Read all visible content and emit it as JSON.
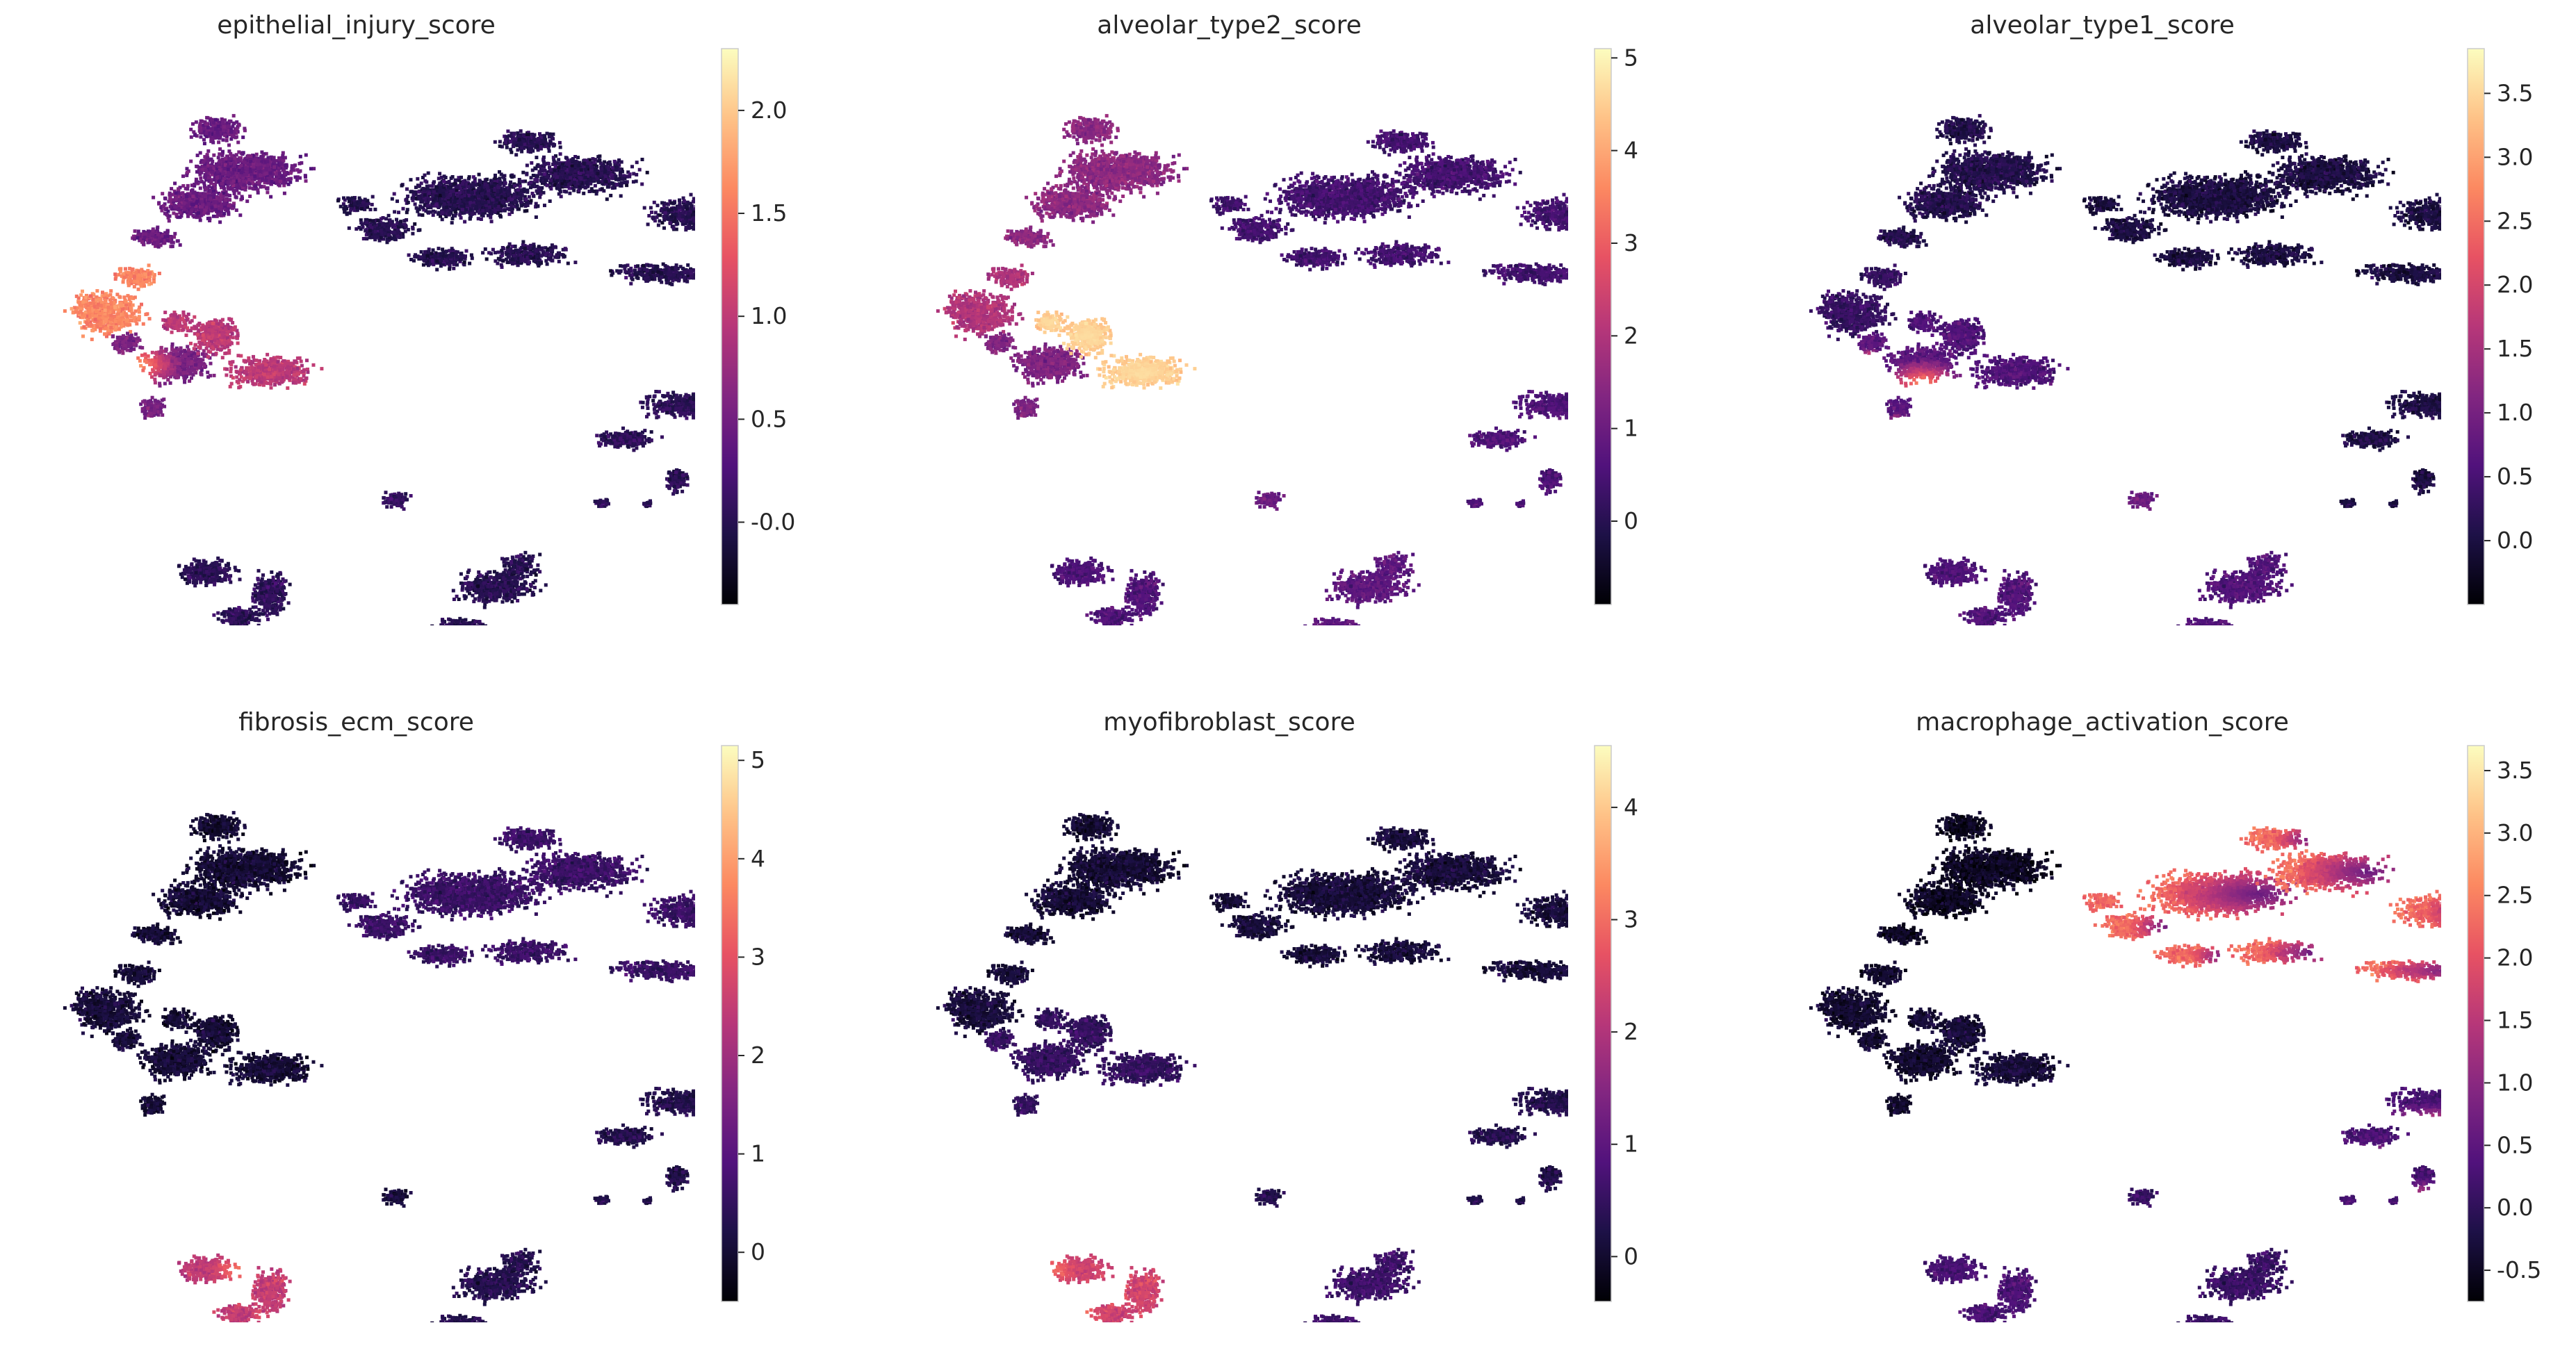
{
  "figure": {
    "type": "umap-feature-grid",
    "layout": "2 rows x 3 columns",
    "colormap": "magma"
  },
  "colormap_stops": [
    "#000004",
    "#1d1147",
    "#51127c",
    "#822681",
    "#b73779",
    "#e75263",
    "#fc8961",
    "#fec287",
    "#fcfdbf"
  ],
  "chart_data": [
    {
      "type": "scatter",
      "title": "epithelial_injury_score",
      "colorbar": {
        "ticks": [
          "-0.0",
          "0.5",
          "1.0",
          "1.5",
          "2.0"
        ],
        "tick_values": [
          0.0,
          0.5,
          1.0,
          1.5,
          2.0
        ],
        "range": [
          -0.4,
          2.3
        ]
      },
      "cluster_levels": {
        "epi_upper": 0.45,
        "epi_hotspot": 1.6,
        "epi_lower": 0.55,
        "epi_mid": 1.0,
        "mac_main": 0.0,
        "mac_tail": 0.05,
        "fib_right": 0.05,
        "small_blob": 0.1,
        "t_left": 0.05,
        "t_right": 0.0
      },
      "hotspots": [
        {
          "cluster": "epi_lower",
          "level": 1.8,
          "near": "left"
        }
      ]
    },
    {
      "type": "scatter",
      "title": "alveolar_type2_score",
      "colorbar": {
        "ticks": [
          "0",
          "1",
          "2",
          "3",
          "4",
          "5"
        ],
        "tick_values": [
          0,
          1,
          2,
          3,
          4,
          5
        ],
        "range": [
          -0.9,
          5.1
        ]
      },
      "cluster_levels": {
        "epi_upper": 1.5,
        "epi_hotspot": 2.0,
        "epi_lower": 1.3,
        "epi_mid": 4.4,
        "mac_main": 0.4,
        "mac_tail": 0.5,
        "fib_right": 0.6,
        "small_blob": 1.0,
        "t_left": 0.6,
        "t_right": 0.8
      },
      "hotspots": [
        {
          "cluster": "epi_mid",
          "level": 4.7,
          "near": "center"
        }
      ]
    },
    {
      "type": "scatter",
      "title": "alveolar_type1_score",
      "colorbar": {
        "ticks": [
          "0.0",
          "0.5",
          "1.0",
          "1.5",
          "2.0",
          "2.5",
          "3.0",
          "3.5"
        ],
        "tick_values": [
          0.0,
          0.5,
          1.0,
          1.5,
          2.0,
          2.5,
          3.0,
          3.5
        ],
        "range": [
          -0.5,
          3.85
        ]
      },
      "cluster_levels": {
        "epi_upper": 0.1,
        "epi_hotspot": 0.3,
        "epi_lower": 0.7,
        "epi_mid": 0.6,
        "mac_main": 0.0,
        "mac_tail": 0.05,
        "fib_right": 0.05,
        "small_blob": 0.9,
        "t_left": 0.6,
        "t_right": 0.6
      },
      "hotspots": [
        {
          "cluster": "epi_lower",
          "level": 2.9,
          "near": "bottom"
        }
      ]
    },
    {
      "type": "scatter",
      "title": "fibrosis_ecm_score",
      "colorbar": {
        "ticks": [
          "0",
          "1",
          "2",
          "3",
          "4",
          "5"
        ],
        "tick_values": [
          0,
          1,
          2,
          3,
          4,
          5
        ],
        "range": [
          -0.5,
          5.15
        ]
      },
      "cluster_levels": {
        "epi_upper": 0.0,
        "epi_hotspot": 0.05,
        "epi_lower": 0.05,
        "epi_mid": 0.05,
        "mac_main": 0.6,
        "mac_tail": 0.4,
        "fib_right": 0.3,
        "small_blob": 0.1,
        "t_left": 2.5,
        "t_right": 0.3
      },
      "hotspots": [
        {
          "cluster": "t_left",
          "level": 3.8,
          "near": "right"
        }
      ]
    },
    {
      "type": "scatter",
      "title": "myofibroblast_score",
      "colorbar": {
        "ticks": [
          "0",
          "1",
          "2",
          "3",
          "4"
        ],
        "tick_values": [
          0,
          1,
          2,
          3,
          4
        ],
        "range": [
          -0.4,
          4.55
        ]
      },
      "cluster_levels": {
        "epi_upper": 0.05,
        "epi_hotspot": 0.1,
        "epi_lower": 0.5,
        "epi_mid": 0.5,
        "mac_main": 0.1,
        "mac_tail": 0.2,
        "fib_right": 0.3,
        "small_blob": 0.3,
        "t_left": 2.4,
        "t_right": 0.6
      },
      "hotspots": [
        {
          "cluster": "t_left",
          "level": 3.3,
          "near": "left"
        }
      ]
    },
    {
      "type": "scatter",
      "title": "macrophage_activation_score",
      "colorbar": {
        "ticks": [
          "-0.5",
          "0.0",
          "0.5",
          "1.0",
          "1.5",
          "2.0",
          "2.5",
          "3.0",
          "3.5"
        ],
        "tick_values": [
          -0.5,
          0.0,
          0.5,
          1.0,
          1.5,
          2.0,
          2.5,
          3.0,
          3.5
        ],
        "range": [
          -0.75,
          3.7
        ]
      },
      "cluster_levels": {
        "epi_upper": -0.5,
        "epi_hotspot": -0.4,
        "epi_lower": -0.4,
        "epi_mid": -0.3,
        "mac_main": 2.3,
        "mac_tail": 1.8,
        "fib_right": 0.3,
        "small_blob": 0.1,
        "t_left": 0.3,
        "t_right": 0.1
      },
      "hotspots": [
        {
          "cluster": "mac_main",
          "level": 0.6,
          "near": "right"
        },
        {
          "cluster": "fib_right",
          "level": 1.6,
          "near": "bottom"
        }
      ]
    }
  ]
}
